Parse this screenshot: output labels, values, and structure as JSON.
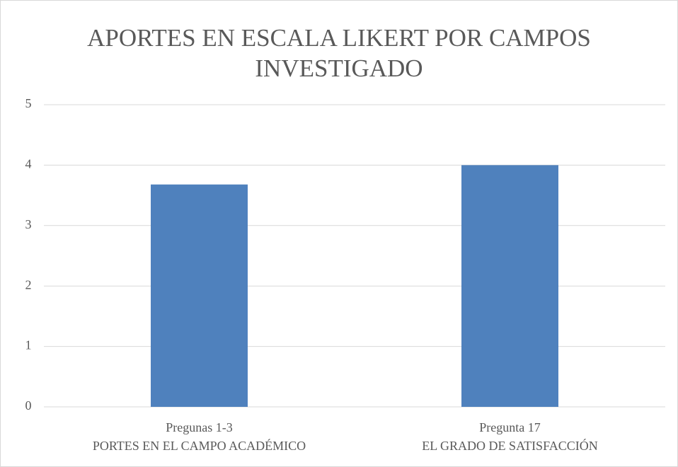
{
  "chart_data": {
    "type": "bar",
    "title": [
      "APORTES EN ESCALA LIKERT POR CAMPOS",
      "INVESTIGADO"
    ],
    "categories": [
      [
        "Pregunas 1-3",
        "PORTES EN EL CAMPO ACADÉMICO"
      ],
      [
        "Pregunta 17",
        "EL GRADO DE SATISFACCIÓN"
      ]
    ],
    "values": [
      3.68,
      4
    ],
    "color": "#4f81bd",
    "ylim": [
      0,
      5
    ],
    "yticks": [
      0,
      1,
      2,
      3,
      4,
      5
    ],
    "grid": true
  }
}
